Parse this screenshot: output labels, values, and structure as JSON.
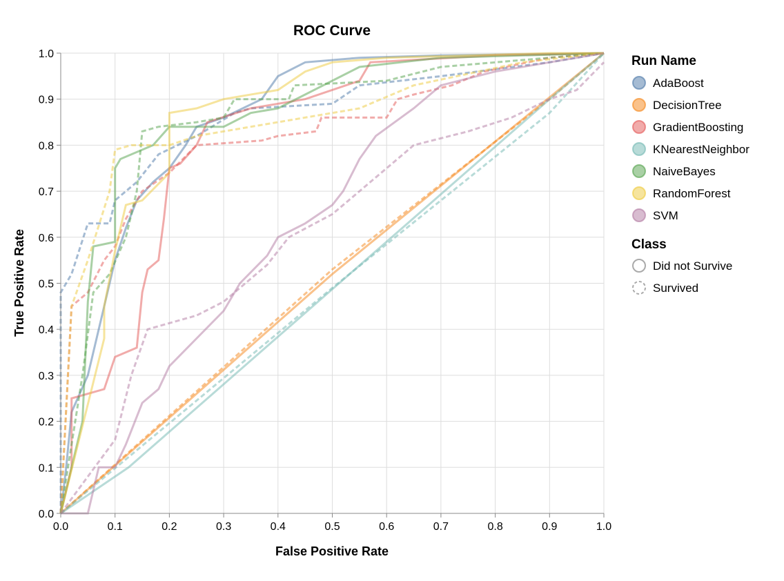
{
  "chart_data": {
    "type": "line",
    "title": "ROC Curve",
    "xlabel": "False Positive Rate",
    "ylabel": "True Positive Rate",
    "xlim": [
      0,
      1
    ],
    "ylim": [
      0,
      1
    ],
    "xticks": [
      "0.0",
      "0.1",
      "0.2",
      "0.3",
      "0.4",
      "0.5",
      "0.6",
      "0.7",
      "0.8",
      "0.9",
      "1.0"
    ],
    "yticks": [
      "0.0",
      "0.1",
      "0.2",
      "0.3",
      "0.4",
      "0.5",
      "0.6",
      "0.7",
      "0.8",
      "0.9",
      "1.0"
    ],
    "grid": true,
    "legend_placement": "right",
    "color_legend": {
      "title": "Run Name",
      "entries": [
        {
          "name": "AdaBoost",
          "color": "#4c78a8"
        },
        {
          "name": "DecisionTree",
          "color": "#f58518"
        },
        {
          "name": "GradientBoosting",
          "color": "#e45756"
        },
        {
          "name": "KNearestNeighbor",
          "color": "#72b7b2"
        },
        {
          "name": "NaiveBayes",
          "color": "#54a24b"
        },
        {
          "name": "RandomForest",
          "color": "#eeca3b"
        },
        {
          "name": "SVM",
          "color": "#b279a2"
        }
      ]
    },
    "dash_legend": {
      "title": "Class",
      "entries": [
        {
          "name": "Did not Survive",
          "dash": "solid"
        },
        {
          "name": "Survived",
          "dash": "dashed"
        }
      ]
    },
    "series": [
      {
        "run": "AdaBoost",
        "class": "Did not Survive",
        "points": [
          [
            0,
            0
          ],
          [
            0.01,
            0.1
          ],
          [
            0.02,
            0.22
          ],
          [
            0.05,
            0.3
          ],
          [
            0.08,
            0.45
          ],
          [
            0.1,
            0.55
          ],
          [
            0.12,
            0.62
          ],
          [
            0.14,
            0.68
          ],
          [
            0.17,
            0.72
          ],
          [
            0.2,
            0.75
          ],
          [
            0.23,
            0.8
          ],
          [
            0.25,
            0.84
          ],
          [
            0.3,
            0.86
          ],
          [
            0.37,
            0.9
          ],
          [
            0.4,
            0.95
          ],
          [
            0.45,
            0.98
          ],
          [
            0.55,
            0.99
          ],
          [
            0.7,
            0.995
          ],
          [
            1,
            1
          ]
        ]
      },
      {
        "run": "AdaBoost",
        "class": "Survived",
        "points": [
          [
            0,
            0
          ],
          [
            0,
            0.48
          ],
          [
            0.02,
            0.52
          ],
          [
            0.05,
            0.63
          ],
          [
            0.09,
            0.63
          ],
          [
            0.1,
            0.68
          ],
          [
            0.14,
            0.72
          ],
          [
            0.18,
            0.78
          ],
          [
            0.25,
            0.82
          ],
          [
            0.32,
            0.87
          ],
          [
            0.35,
            0.88
          ],
          [
            0.5,
            0.89
          ],
          [
            0.55,
            0.93
          ],
          [
            0.7,
            0.95
          ],
          [
            0.9,
            0.98
          ],
          [
            1,
            1
          ]
        ]
      },
      {
        "run": "DecisionTree",
        "class": "Did not Survive",
        "points": [
          [
            0,
            0
          ],
          [
            0.5,
            0.52
          ],
          [
            1,
            1
          ]
        ]
      },
      {
        "run": "DecisionTree",
        "class": "Survived",
        "points": [
          [
            0,
            0
          ],
          [
            0.5,
            0.53
          ],
          [
            0.9,
            0.9
          ],
          [
            1,
            1
          ]
        ]
      },
      {
        "run": "GradientBoosting",
        "class": "Did not Survive",
        "points": [
          [
            0,
            0
          ],
          [
            0.02,
            0.1
          ],
          [
            0.02,
            0.25
          ],
          [
            0.08,
            0.27
          ],
          [
            0.1,
            0.34
          ],
          [
            0.14,
            0.36
          ],
          [
            0.15,
            0.48
          ],
          [
            0.16,
            0.53
          ],
          [
            0.18,
            0.55
          ],
          [
            0.19,
            0.64
          ],
          [
            0.2,
            0.75
          ],
          [
            0.22,
            0.76
          ],
          [
            0.25,
            0.8
          ],
          [
            0.27,
            0.85
          ],
          [
            0.35,
            0.88
          ],
          [
            0.45,
            0.9
          ],
          [
            0.55,
            0.94
          ],
          [
            0.57,
            0.98
          ],
          [
            0.8,
            0.995
          ],
          [
            1,
            1
          ]
        ]
      },
      {
        "run": "GradientBoosting",
        "class": "Survived",
        "points": [
          [
            0,
            0
          ],
          [
            0.02,
            0.45
          ],
          [
            0.05,
            0.48
          ],
          [
            0.08,
            0.55
          ],
          [
            0.1,
            0.58
          ],
          [
            0.12,
            0.64
          ],
          [
            0.15,
            0.7
          ],
          [
            0.2,
            0.74
          ],
          [
            0.25,
            0.8
          ],
          [
            0.37,
            0.81
          ],
          [
            0.4,
            0.82
          ],
          [
            0.47,
            0.83
          ],
          [
            0.48,
            0.86
          ],
          [
            0.6,
            0.86
          ],
          [
            0.62,
            0.9
          ],
          [
            0.65,
            0.91
          ],
          [
            0.72,
            0.93
          ],
          [
            0.78,
            0.96
          ],
          [
            0.9,
            0.99
          ],
          [
            1,
            1
          ]
        ]
      },
      {
        "run": "KNearestNeighbor",
        "class": "Did not Survive",
        "points": [
          [
            0,
            0
          ],
          [
            0.125,
            0.1
          ],
          [
            0.9,
            0.9
          ],
          [
            1,
            1
          ]
        ]
      },
      {
        "run": "KNearestNeighbor",
        "class": "Survived",
        "points": [
          [
            0,
            0
          ],
          [
            0.5,
            0.49
          ],
          [
            0.9,
            0.87
          ],
          [
            1,
            1
          ]
        ]
      },
      {
        "run": "NaiveBayes",
        "class": "Did not Survive",
        "points": [
          [
            0,
            0
          ],
          [
            0.04,
            0.2
          ],
          [
            0.05,
            0.46
          ],
          [
            0.06,
            0.58
          ],
          [
            0.1,
            0.59
          ],
          [
            0.1,
            0.75
          ],
          [
            0.11,
            0.77
          ],
          [
            0.17,
            0.8
          ],
          [
            0.2,
            0.84
          ],
          [
            0.3,
            0.84
          ],
          [
            0.35,
            0.87
          ],
          [
            0.4,
            0.88
          ],
          [
            0.45,
            0.91
          ],
          [
            0.5,
            0.94
          ],
          [
            0.55,
            0.97
          ],
          [
            0.7,
            0.99
          ],
          [
            1,
            1
          ]
        ]
      },
      {
        "run": "NaiveBayes",
        "class": "Survived",
        "points": [
          [
            0,
            0
          ],
          [
            0.04,
            0.3
          ],
          [
            0.06,
            0.48
          ],
          [
            0.09,
            0.52
          ],
          [
            0.12,
            0.6
          ],
          [
            0.14,
            0.7
          ],
          [
            0.15,
            0.83
          ],
          [
            0.18,
            0.84
          ],
          [
            0.25,
            0.85
          ],
          [
            0.3,
            0.86
          ],
          [
            0.32,
            0.9
          ],
          [
            0.42,
            0.9
          ],
          [
            0.43,
            0.93
          ],
          [
            0.6,
            0.94
          ],
          [
            0.7,
            0.97
          ],
          [
            1,
            1
          ]
        ]
      },
      {
        "run": "RandomForest",
        "class": "Did not Survive",
        "points": [
          [
            0,
            0
          ],
          [
            0.08,
            0.38
          ],
          [
            0.08,
            0.45
          ],
          [
            0.1,
            0.57
          ],
          [
            0.12,
            0.67
          ],
          [
            0.15,
            0.68
          ],
          [
            0.2,
            0.74
          ],
          [
            0.2,
            0.87
          ],
          [
            0.25,
            0.88
          ],
          [
            0.3,
            0.9
          ],
          [
            0.4,
            0.92
          ],
          [
            0.45,
            0.96
          ],
          [
            0.5,
            0.98
          ],
          [
            0.6,
            0.99
          ],
          [
            0.9,
            1
          ],
          [
            1,
            1
          ]
        ]
      },
      {
        "run": "RandomForest",
        "class": "Survived",
        "points": [
          [
            0,
            0
          ],
          [
            0.02,
            0.45
          ],
          [
            0.05,
            0.55
          ],
          [
            0.09,
            0.7
          ],
          [
            0.1,
            0.79
          ],
          [
            0.13,
            0.8
          ],
          [
            0.2,
            0.8
          ],
          [
            0.25,
            0.82
          ],
          [
            0.35,
            0.84
          ],
          [
            0.5,
            0.87
          ],
          [
            0.55,
            0.88
          ],
          [
            0.65,
            0.93
          ],
          [
            0.85,
            0.98
          ],
          [
            1,
            1
          ]
        ]
      },
      {
        "run": "SVM",
        "class": "Did not Survive",
        "points": [
          [
            0,
            0
          ],
          [
            0.05,
            0
          ],
          [
            0.07,
            0.1
          ],
          [
            0.1,
            0.1
          ],
          [
            0.12,
            0.15
          ],
          [
            0.15,
            0.24
          ],
          [
            0.18,
            0.27
          ],
          [
            0.2,
            0.32
          ],
          [
            0.25,
            0.38
          ],
          [
            0.3,
            0.44
          ],
          [
            0.33,
            0.5
          ],
          [
            0.38,
            0.56
          ],
          [
            0.4,
            0.6
          ],
          [
            0.45,
            0.63
          ],
          [
            0.5,
            0.67
          ],
          [
            0.52,
            0.7
          ],
          [
            0.55,
            0.77
          ],
          [
            0.58,
            0.82
          ],
          [
            0.65,
            0.88
          ],
          [
            0.7,
            0.93
          ],
          [
            0.8,
            0.96
          ],
          [
            0.9,
            0.98
          ],
          [
            1,
            1
          ]
        ]
      },
      {
        "run": "SVM",
        "class": "Survived",
        "points": [
          [
            0,
            0
          ],
          [
            0.05,
            0.08
          ],
          [
            0.1,
            0.16
          ],
          [
            0.13,
            0.3
          ],
          [
            0.16,
            0.4
          ],
          [
            0.25,
            0.43
          ],
          [
            0.3,
            0.46
          ],
          [
            0.38,
            0.54
          ],
          [
            0.42,
            0.6
          ],
          [
            0.5,
            0.65
          ],
          [
            0.55,
            0.7
          ],
          [
            0.6,
            0.75
          ],
          [
            0.65,
            0.8
          ],
          [
            0.75,
            0.83
          ],
          [
            0.83,
            0.86
          ],
          [
            0.9,
            0.9
          ],
          [
            0.95,
            0.92
          ],
          [
            1,
            0.98
          ]
        ]
      }
    ]
  }
}
